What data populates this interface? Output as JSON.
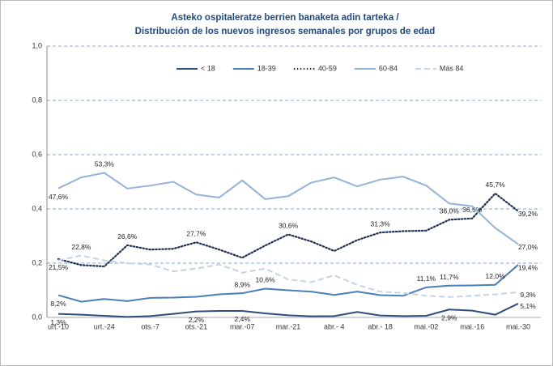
{
  "chart_data": {
    "type": "line",
    "title": "Asteko ospitaleratze berrien banaketa adin tarteka /",
    "subtitle": "Distribución de los nuevos ingresos semanales por grupos de edad",
    "categories": [
      "urt.-10",
      null,
      "urt.-24",
      null,
      "ots.-7",
      null,
      "ots.-21",
      null,
      "mar.-07",
      null,
      "mar.-21",
      null,
      "abr.- 4",
      null,
      "abr.- 18",
      null,
      "mai.-02",
      null,
      "mai.-16",
      null,
      "mai.-30"
    ],
    "ylim": [
      0,
      1
    ],
    "yticks": [
      {
        "value": 0,
        "label": "0,0"
      },
      {
        "value": 0.2,
        "label": "0,2"
      },
      {
        "value": 0.4,
        "label": "0,4"
      },
      {
        "value": 0.6,
        "label": "0,6"
      },
      {
        "value": 0.8,
        "label": "0,8"
      },
      {
        "value": 1,
        "label": "1,0"
      }
    ],
    "grid": true,
    "legend": "top",
    "series": [
      {
        "name": "< 18",
        "color": "#2e4d7b",
        "dash": "solid",
        "values": [
          0.013,
          0.01,
          0.006,
          0.002,
          0.005,
          0.013,
          0.022,
          0.024,
          0.024,
          0.015,
          0.008,
          0.004,
          0.005,
          0.02,
          0.007,
          0.005,
          0.006,
          0.029,
          0.025,
          0.01,
          0.051
        ],
        "value_labels": [
          "1,3%",
          null,
          null,
          null,
          null,
          null,
          "2,2%",
          null,
          "2,4%",
          null,
          null,
          null,
          null,
          null,
          null,
          null,
          null,
          "2,9%",
          null,
          null,
          "5,1%"
        ]
      },
      {
        "name": "18-39",
        "color": "#4a7ebb",
        "dash": "solid",
        "values": [
          0.082,
          0.058,
          0.068,
          0.06,
          0.072,
          0.073,
          0.076,
          0.085,
          0.089,
          0.106,
          0.1,
          0.095,
          0.083,
          0.095,
          0.082,
          0.08,
          0.111,
          0.117,
          0.118,
          0.12,
          0.194
        ],
        "value_labels": [
          "8,2%",
          null,
          null,
          null,
          null,
          null,
          null,
          null,
          "8,9%",
          "10,6%",
          null,
          null,
          null,
          null,
          null,
          null,
          "11,1%",
          "11,7%",
          null,
          "12,0%",
          "19,4%"
        ]
      },
      {
        "name": "40-59",
        "color": "#1f2f4f",
        "dash": "dotted",
        "values": [
          0.215,
          0.193,
          0.188,
          0.266,
          0.25,
          0.253,
          0.277,
          0.25,
          0.22,
          0.265,
          0.306,
          0.28,
          0.245,
          0.285,
          0.313,
          0.318,
          0.32,
          0.36,
          0.365,
          0.457,
          0.392
        ],
        "value_labels": [
          "21,5%",
          null,
          null,
          "26,6%",
          null,
          null,
          "27,7%",
          null,
          null,
          null,
          "30,6%",
          null,
          null,
          null,
          "31,3%",
          null,
          null,
          "36,0%",
          "36,5%",
          "45,7%",
          "39,2%"
        ]
      },
      {
        "name": "60-84",
        "color": "#95b3d7",
        "dash": "solid",
        "values": [
          0.476,
          0.516,
          0.533,
          0.475,
          0.486,
          0.5,
          0.453,
          0.442,
          0.505,
          0.436,
          0.447,
          0.497,
          0.516,
          0.483,
          0.508,
          0.519,
          0.486,
          0.42,
          0.41,
          0.33,
          0.27
        ],
        "value_labels": [
          "47,6%",
          null,
          "53,3%",
          null,
          null,
          null,
          null,
          null,
          null,
          null,
          null,
          null,
          null,
          null,
          null,
          null,
          null,
          null,
          null,
          null,
          "27,0%"
        ]
      },
      {
        "name": "Más 84",
        "color": "#c5d3e6",
        "dash": "dashed",
        "values": [
          0.21,
          0.228,
          0.21,
          0.2,
          0.195,
          0.17,
          0.18,
          0.195,
          0.165,
          0.18,
          0.14,
          0.13,
          0.155,
          0.12,
          0.095,
          0.09,
          0.08,
          0.075,
          0.08,
          0.085,
          0.093
        ],
        "value_labels": [
          null,
          "22,8%",
          null,
          null,
          null,
          null,
          null,
          null,
          null,
          null,
          null,
          null,
          null,
          null,
          null,
          null,
          null,
          null,
          null,
          null,
          "9,3%"
        ]
      }
    ]
  }
}
